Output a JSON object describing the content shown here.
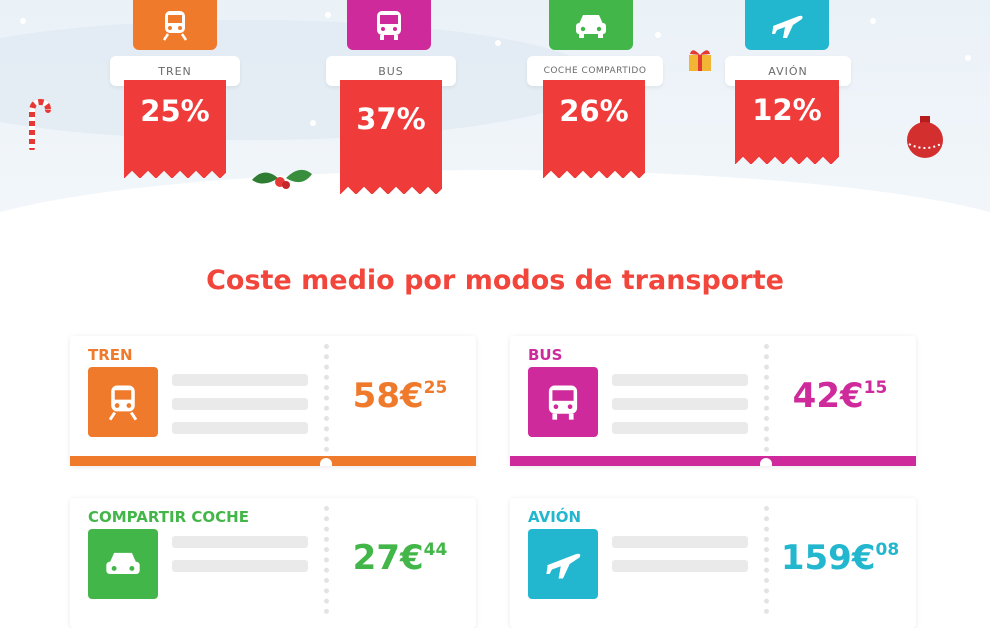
{
  "modes": [
    {
      "label": "TREN",
      "percent": "25%",
      "color": "#f07a2b",
      "icon": "train-icon"
    },
    {
      "label": "BUS",
      "percent": "37%",
      "color": "#cf2a9b",
      "icon": "bus-icon"
    },
    {
      "label": "COCHE COMPARTIDO",
      "percent": "26%",
      "color": "#43b649",
      "icon": "car-icon"
    },
    {
      "label": "AVIÓN",
      "percent": "12%",
      "color": "#22b7cf",
      "icon": "plane-icon"
    }
  ],
  "heading": "Coste medio por modos de transporte",
  "costs": [
    {
      "title": "TREN",
      "euros": "58€",
      "cents": "25",
      "color": "#f07a2b",
      "icon": "train-icon"
    },
    {
      "title": "BUS",
      "euros": "42€",
      "cents": "15",
      "color": "#cf2a9b",
      "icon": "bus-icon"
    },
    {
      "title": "COMPARTIR COCHE",
      "euros": "27€",
      "cents": "44",
      "color": "#43b649",
      "icon": "car-icon"
    },
    {
      "title": "AVIÓN",
      "euros": "159€",
      "cents": "08",
      "color": "#22b7cf",
      "icon": "plane-icon"
    }
  ],
  "decor_colors": {
    "ribbon": "#ef3b3a"
  }
}
